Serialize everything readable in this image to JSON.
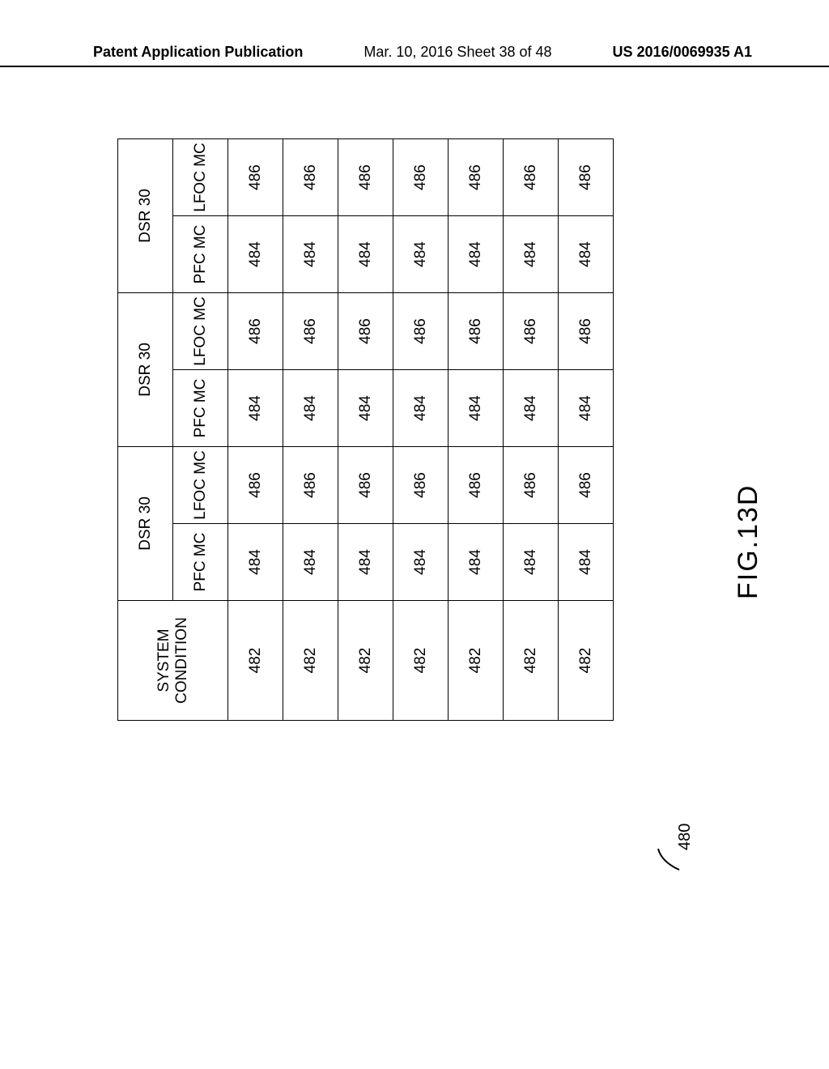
{
  "header": {
    "left": "Patent Application Publication",
    "center": "Mar. 10, 2016  Sheet 38 of 48",
    "right": "US 2016/0069935 A1"
  },
  "table": {
    "header": {
      "system_condition": "SYSTEM CONDITION",
      "group_label": "DSR 30",
      "pfc": "PFC MC",
      "lfoc": "LFOC MC"
    },
    "rows": [
      {
        "sys": "482",
        "pfc": "484",
        "lfoc": "486"
      },
      {
        "sys": "482",
        "pfc": "484",
        "lfoc": "486"
      },
      {
        "sys": "482",
        "pfc": "484",
        "lfoc": "486"
      },
      {
        "sys": "482",
        "pfc": "484",
        "lfoc": "486"
      },
      {
        "sys": "482",
        "pfc": "484",
        "lfoc": "486"
      },
      {
        "sys": "482",
        "pfc": "484",
        "lfoc": "486"
      },
      {
        "sys": "482",
        "pfc": "484",
        "lfoc": "486"
      }
    ],
    "num_groups": 3,
    "column_widths": {
      "sys": 148,
      "pfc": 95,
      "lfoc": 95
    },
    "border_color": "#000000",
    "background_color": "#ffffff",
    "font_size": 19
  },
  "figure_label": "FIG.13D",
  "callout": "480"
}
